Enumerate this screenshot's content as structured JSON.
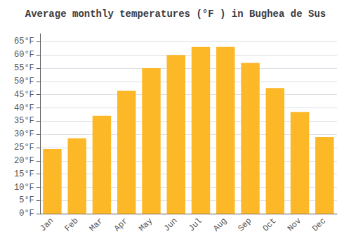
{
  "chart_data": {
    "type": "bar",
    "title": "Average monthly temperatures (°F ) in Bughea de Sus",
    "categories": [
      "Jan",
      "Feb",
      "Mar",
      "Apr",
      "May",
      "Jun",
      "Jul",
      "Aug",
      "Sep",
      "Oct",
      "Nov",
      "Dec"
    ],
    "values": [
      24.5,
      28.5,
      37.0,
      46.5,
      55.0,
      60.0,
      63.0,
      63.0,
      57.0,
      47.5,
      38.5,
      29.0
    ],
    "color": "#FDB827",
    "ylim": [
      0,
      68
    ],
    "yticks": [
      {
        "value": 0,
        "label": "0°F"
      },
      {
        "value": 5,
        "label": "5°F"
      },
      {
        "value": 10,
        "label": "10°F"
      },
      {
        "value": 15,
        "label": "15°F"
      },
      {
        "value": 20,
        "label": "20°F"
      },
      {
        "value": 25,
        "label": "25°F"
      },
      {
        "value": 30,
        "label": "30°F"
      },
      {
        "value": 35,
        "label": "35°F"
      },
      {
        "value": 40,
        "label": "40°F"
      },
      {
        "value": 45,
        "label": "45°F"
      },
      {
        "value": 50,
        "label": "50°F"
      },
      {
        "value": 55,
        "label": "55°F"
      },
      {
        "value": 60,
        "label": "60°F"
      },
      {
        "value": 65,
        "label": "65°F"
      }
    ],
    "grid": true
  }
}
